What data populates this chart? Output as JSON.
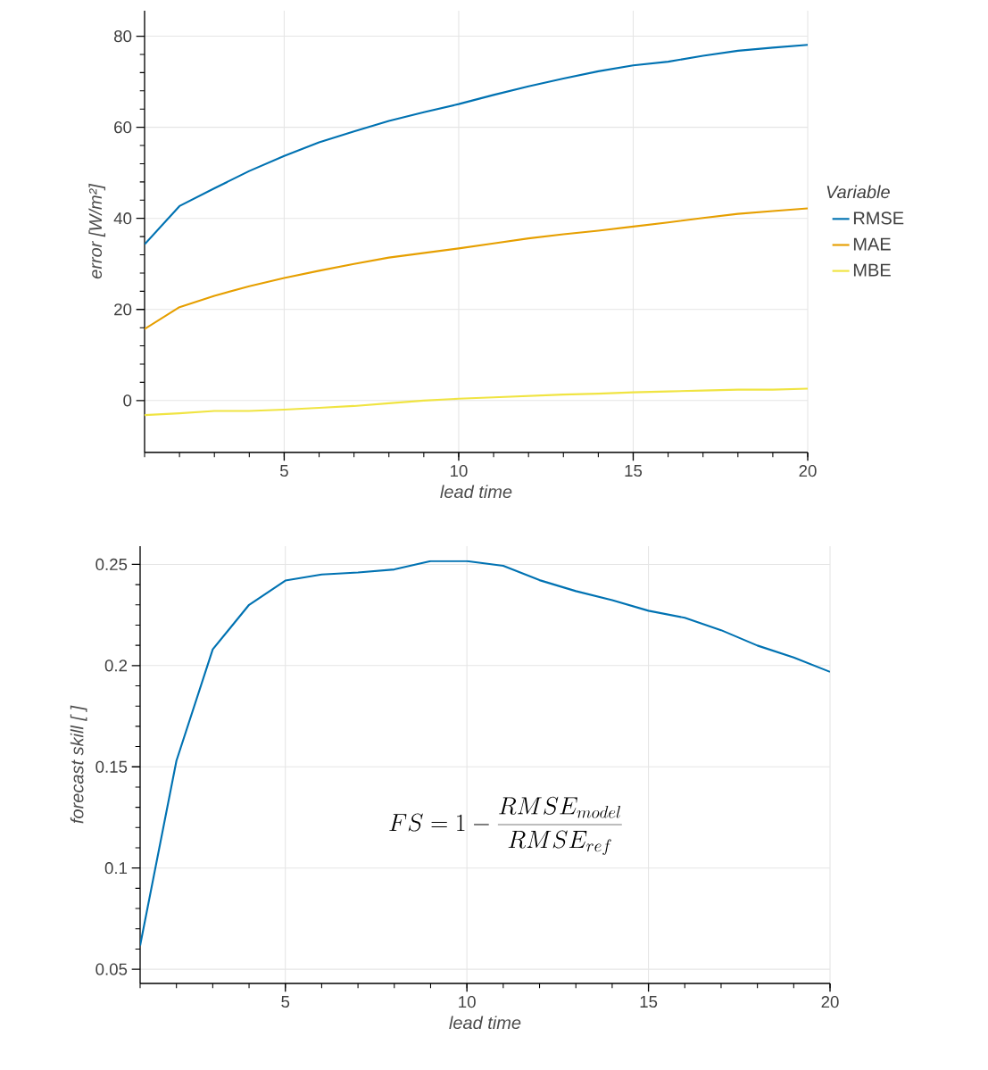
{
  "chart_data": [
    {
      "type": "line",
      "xlabel": "lead time",
      "ylabel": "error [W/m²]",
      "legend_title": "Variable",
      "legend": "right",
      "grid": true,
      "marker": "none",
      "line_style": "solid",
      "x": [
        1,
        2,
        3,
        4,
        5,
        6,
        7,
        8,
        9,
        10,
        11,
        12,
        13,
        14,
        15,
        16,
        17,
        18,
        19,
        20
      ],
      "xlim": [
        1,
        20
      ],
      "xticks": [
        5,
        10,
        15,
        20
      ],
      "ylim": [
        -11.4,
        85.6
      ],
      "yticks": [
        0,
        20,
        40,
        60,
        80
      ],
      "series": [
        {
          "name": "RMSE",
          "color": "#0072b2",
          "values": [
            34.3,
            42.7,
            46.6,
            50.4,
            53.7,
            56.7,
            59.1,
            61.4,
            63.3,
            65.1,
            67.1,
            69.0,
            70.7,
            72.3,
            73.6,
            74.4,
            75.7,
            76.8,
            77.5,
            78.1
          ]
        },
        {
          "name": "MAE",
          "color": "#e69f00",
          "values": [
            15.7,
            20.5,
            23.0,
            25.1,
            26.9,
            28.5,
            30.0,
            31.4,
            32.4,
            33.4,
            34.5,
            35.6,
            36.5,
            37.3,
            38.2,
            39.1,
            40.1,
            41.0,
            41.6,
            42.2
          ]
        },
        {
          "name": "MBE",
          "color": "#f0e442",
          "values": [
            -3.2,
            -2.8,
            -2.3,
            -2.3,
            -2.0,
            -1.6,
            -1.2,
            -0.6,
            0.0,
            0.4,
            0.7,
            1.0,
            1.3,
            1.5,
            1.8,
            2.0,
            2.2,
            2.4,
            2.4,
            2.6
          ]
        }
      ]
    },
    {
      "type": "line",
      "xlabel": "lead time",
      "ylabel": "forecast skill [ ]",
      "grid": true,
      "marker": "none",
      "line_style": "solid",
      "x": [
        1,
        2,
        3,
        4,
        5,
        6,
        7,
        8,
        9,
        10,
        11,
        12,
        13,
        14,
        15,
        16,
        17,
        18,
        19,
        20
      ],
      "xlim": [
        1,
        20
      ],
      "xticks": [
        5,
        10,
        15,
        20
      ],
      "ylim": [
        0.043,
        0.259
      ],
      "yticks": [
        0.05,
        0.1,
        0.15,
        0.2,
        0.25
      ],
      "color": "#0072b2",
      "values": [
        0.0617,
        0.153,
        0.208,
        0.23,
        0.242,
        0.245,
        0.246,
        0.2475,
        0.2516,
        0.2516,
        0.2493,
        0.2422,
        0.2368,
        0.2323,
        0.2271,
        0.2236,
        0.2175,
        0.2099,
        0.204,
        0.1969
      ],
      "annotations": [
        "FS = 1 - \\frac{RMSE_{model}}{RMSE_{ref}}"
      ]
    }
  ]
}
